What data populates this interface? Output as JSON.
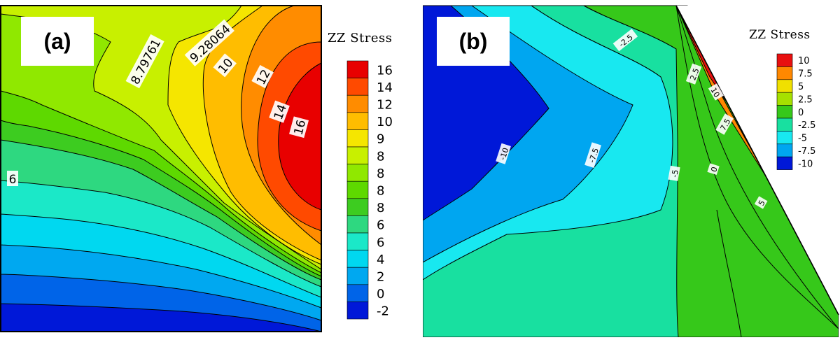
{
  "chart_data": [
    {
      "type": "contour",
      "panel_label": "(a)",
      "legend_title": "ZZ Stress",
      "legend": [
        "16",
        "14",
        "12",
        "10",
        "9",
        "8",
        "8",
        "8",
        "8",
        "6",
        "6",
        "4",
        "2",
        "0",
        "-2"
      ],
      "contour_labels": [
        "8.79761",
        "9.28064",
        "10",
        "12",
        "14",
        "16",
        "6"
      ],
      "colors": [
        "#e80000",
        "#ff4a00",
        "#ff8c00",
        "#ffbd00",
        "#f5e600",
        "#c8f000",
        "#90e800",
        "#5ed900",
        "#3dcc20",
        "#2ed880",
        "#1be8c8",
        "#00d8f0",
        "#00a8f0",
        "#0064e8",
        "#0018d8"
      ]
    },
    {
      "type": "contour",
      "panel_label": "(b)",
      "legend_title": "ZZ Stress",
      "legend": [
        "10",
        "7.5",
        "5",
        "2.5",
        "0",
        "-2.5",
        "-5",
        "-7.5",
        "-10"
      ],
      "contour_labels": [
        "-10",
        "-7.5",
        "-5",
        "-2.5",
        "0",
        "2.5",
        "5",
        "7.5",
        "10"
      ],
      "colors": [
        "#e81010",
        "#ff8800",
        "#f0e000",
        "#a6e000",
        "#36c81a",
        "#18e0a0",
        "#18e8f0",
        "#00a6f0",
        "#0018d8"
      ]
    }
  ]
}
